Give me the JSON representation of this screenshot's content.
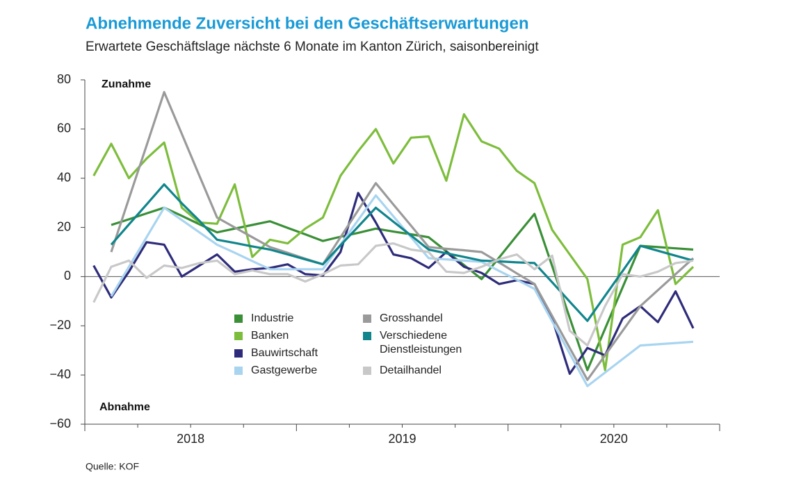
{
  "chart_data": {
    "type": "line",
    "title": "Abnehmende Zuversicht bei den Geschäftserwartungen",
    "subtitle": "Erwartete Geschäftslage nächste 6 Monate im Kanton Zürich, saisonbereinigt",
    "annotations": [
      "Zunahme",
      "Abnahme"
    ],
    "source": "Quelle: KOF",
    "categories": [
      null,
      null,
      null,
      null,
      null,
      "2018",
      null,
      null,
      null,
      null,
      null,
      null,
      null,
      null,
      null,
      null,
      null,
      "2019",
      null,
      null,
      null,
      null,
      null,
      null,
      null,
      null,
      null,
      null,
      null,
      "2020",
      null,
      null,
      null,
      null,
      null
    ],
    "ylim": [
      -60,
      80
    ],
    "yticks": [
      {
        "value": -60,
        "label": "−60"
      },
      {
        "value": -40,
        "label": "−40"
      },
      {
        "value": -20,
        "label": "−20"
      },
      0,
      20,
      40,
      60,
      80
    ],
    "series": [
      {
        "name": "Industrie",
        "color": "#3a8f37",
        "values": [
          null,
          21,
          23.3,
          25.7,
          28,
          24.7,
          21.3,
          18,
          19.5,
          21,
          22.5,
          19.8,
          17.2,
          14.5,
          16.2,
          17.8,
          19.5,
          18.3,
          17.2,
          16,
          10.3,
          4.7,
          -1,
          7.8,
          16.7,
          25.5,
          4.3,
          -16.8,
          -38,
          -21.2,
          -4.3,
          12.5,
          12,
          11.5,
          11
        ]
      },
      {
        "name": "Banken",
        "color": "#7dbd3c",
        "values": [
          41,
          54,
          40,
          48,
          54.5,
          28,
          22,
          21.5,
          37.5,
          8,
          15,
          13.5,
          19.5,
          24,
          41,
          51,
          60,
          46,
          56.5,
          57,
          39,
          66,
          55,
          52,
          43,
          38,
          19,
          9,
          -1,
          -38,
          13,
          16,
          27,
          -3,
          4
        ]
      },
      {
        "name": "Bauwirtschaft",
        "color": "#2e2c7a",
        "values": [
          4.5,
          -8.5,
          2,
          14,
          13,
          0,
          4.5,
          9,
          2,
          3,
          3.5,
          5,
          1,
          0.5,
          10,
          34,
          22,
          9,
          7.5,
          3.5,
          10,
          4,
          1.5,
          -3,
          -1.5,
          -3,
          -17,
          -39.5,
          -29,
          -32,
          -17,
          -12,
          -18.5,
          -6,
          -21
        ]
      },
      {
        "name": "Gastgewerbe",
        "color": "#a8d4f0",
        "values": [
          null,
          -8,
          4,
          16,
          28,
          23,
          18,
          13,
          9.7,
          6.3,
          3,
          3,
          3,
          3,
          13,
          23,
          33,
          24.5,
          16,
          7.5,
          7,
          6.5,
          6,
          2.3,
          -1.3,
          -5,
          -18.2,
          -31.3,
          -44.5,
          -39,
          -33.5,
          -28,
          -27.5,
          -27,
          -26.5
        ]
      },
      {
        "name": "Grosshandel",
        "color": "#9a9a9a",
        "values": [
          null,
          10,
          31.7,
          53.3,
          75,
          58,
          41,
          24,
          20,
          16,
          12,
          9.7,
          7.3,
          5,
          16,
          27,
          38,
          29.3,
          20.7,
          12,
          11.3,
          10.7,
          10,
          5.7,
          1.3,
          -3,
          -16,
          -29,
          -42,
          -32,
          -22,
          -12,
          -5.5,
          1,
          7.5
        ]
      },
      {
        "name": "Verschiedene Dienstleistungen",
        "color": "#10858c",
        "values": [
          null,
          13,
          21.2,
          29.3,
          37.5,
          29.8,
          22.7,
          15,
          13.7,
          12.3,
          11,
          9,
          7,
          5,
          12.7,
          20.3,
          28,
          22.3,
          16.7,
          11,
          9.5,
          8,
          6.5,
          6.2,
          5.8,
          5.5,
          -2.3,
          -10.2,
          -18,
          -7.8,
          2.3,
          12.5,
          10.5,
          8.5,
          6.5
        ]
      },
      {
        "name": "Detailhandel",
        "color": "#c8c8c8",
        "values": [
          -10.5,
          4,
          6.5,
          -0.5,
          4.5,
          3.5,
          5.5,
          6.5,
          1,
          2.5,
          1,
          1,
          -2,
          1,
          4.5,
          5,
          12.5,
          13.5,
          11,
          10,
          2,
          1.5,
          4,
          7,
          9,
          3,
          8.5,
          -22,
          -28,
          -12,
          1,
          0,
          2,
          5.5,
          6.5
        ]
      }
    ]
  }
}
